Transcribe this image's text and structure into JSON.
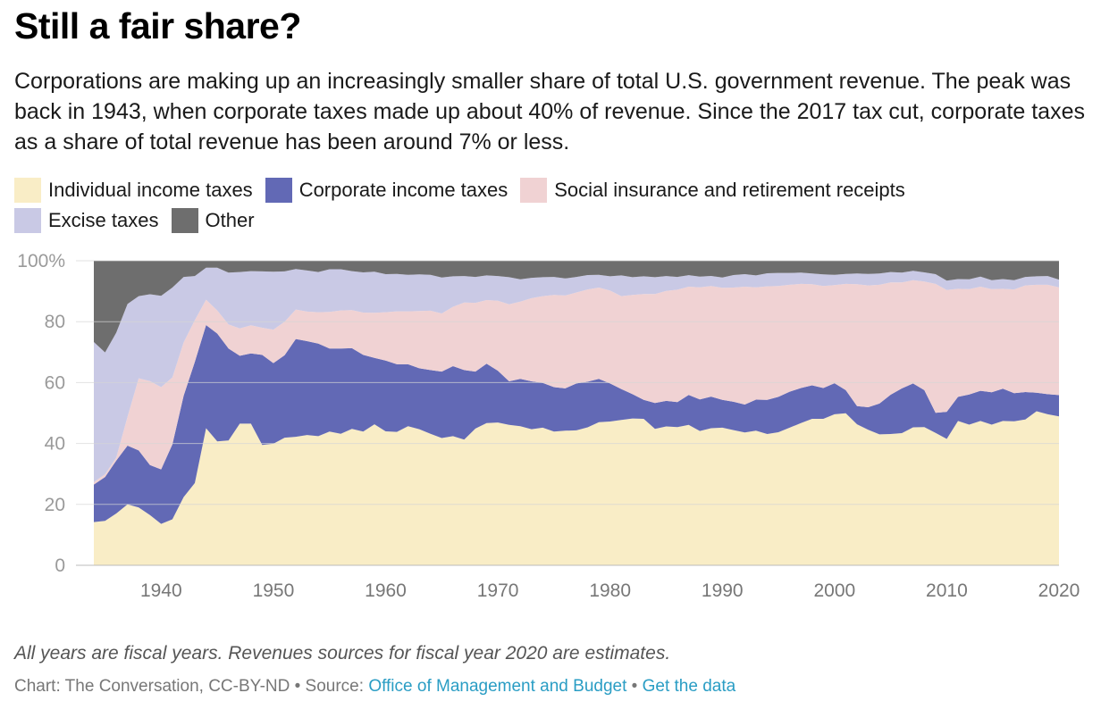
{
  "header": {
    "title": "Still a fair share?",
    "subtitle": "Corporations are making up an increasingly smaller share of total U.S. government revenue. The peak was back in 1943, when corporate taxes made up about 40% of revenue. Since the 2017 tax cut, corporate taxes as a share of total revenue has been around 7% or less."
  },
  "legend": [
    {
      "label": "Individual income taxes",
      "color": "#f9edc6"
    },
    {
      "label": "Corporate income taxes",
      "color": "#6269b5"
    },
    {
      "label": "Social insurance and retirement receipts",
      "color": "#f0d2d3"
    },
    {
      "label": "Excise taxes",
      "color": "#c9c9e5"
    },
    {
      "label": "Other",
      "color": "#6e6e6e"
    }
  ],
  "footer": {
    "note": "All years are fiscal years. Revenues sources for fiscal year 2020 are estimates.",
    "credit_prefix": "Chart: The Conversation, CC-BY-ND • Source: ",
    "source_link": "Office of Management and Budget",
    "separator": " • ",
    "data_link": "Get the data"
  },
  "chart_data": {
    "type": "area",
    "stacked": true,
    "ylim": [
      0,
      100
    ],
    "xlim": [
      1934,
      2020
    ],
    "y_ticks": [
      "0",
      "20",
      "40",
      "60",
      "80",
      "100%"
    ],
    "x_ticks": [
      "1940",
      "1950",
      "1960",
      "1970",
      "1980",
      "1990",
      "2000",
      "2010",
      "2020"
    ],
    "grid": true,
    "legend_position": "top",
    "x": [
      1934,
      1935,
      1936,
      1937,
      1938,
      1939,
      1940,
      1941,
      1942,
      1943,
      1944,
      1945,
      1946,
      1947,
      1948,
      1949,
      1950,
      1951,
      1952,
      1953,
      1954,
      1955,
      1956,
      1957,
      1958,
      1959,
      1960,
      1961,
      1962,
      1963,
      1964,
      1965,
      1966,
      1967,
      1968,
      1969,
      1970,
      1971,
      1972,
      1973,
      1974,
      1975,
      1976,
      1977,
      1978,
      1979,
      1980,
      1981,
      1982,
      1983,
      1984,
      1985,
      1986,
      1987,
      1988,
      1989,
      1990,
      1991,
      1992,
      1993,
      1994,
      1995,
      1996,
      1997,
      1998,
      1999,
      2000,
      2001,
      2002,
      2003,
      2004,
      2005,
      2006,
      2007,
      2008,
      2009,
      2010,
      2011,
      2012,
      2013,
      2014,
      2015,
      2016,
      2017,
      2018,
      2019,
      2020
    ],
    "series": [
      {
        "name": "Individual income taxes",
        "color": "#f9edc6",
        "values": [
          14.2,
          14.6,
          17.0,
          20.0,
          19.0,
          16.5,
          13.6,
          15.1,
          22.4,
          27.0,
          45.0,
          40.7,
          41.0,
          46.5,
          46.5,
          39.5,
          39.9,
          41.9,
          42.2,
          42.8,
          42.4,
          43.9,
          43.2,
          44.8,
          43.9,
          46.3,
          44.0,
          43.8,
          45.7,
          44.7,
          43.2,
          41.8,
          42.4,
          41.3,
          44.9,
          46.7,
          46.9,
          46.1,
          45.7,
          44.7,
          45.2,
          43.9,
          44.2,
          44.3,
          45.3,
          47.0,
          47.2,
          47.7,
          48.2,
          48.1,
          44.8,
          45.6,
          45.4,
          46.0,
          44.1,
          45.0,
          45.2,
          44.4,
          43.6,
          44.2,
          43.1,
          43.7,
          45.2,
          46.7,
          48.1,
          48.1,
          49.6,
          49.9,
          46.3,
          44.5,
          43.0,
          43.1,
          43.4,
          45.3,
          45.4,
          43.5,
          41.5,
          47.4,
          46.2,
          47.4,
          46.2,
          47.4,
          47.3,
          47.9,
          50.6,
          49.6,
          48.9
        ]
      },
      {
        "name": "Corporate income taxes",
        "color": "#6269b5",
        "values": [
          12.3,
          14.4,
          17.4,
          19.3,
          18.7,
          16.4,
          17.9,
          24.6,
          33.3,
          39.8,
          33.9,
          35.4,
          30.2,
          22.3,
          23.1,
          29.6,
          26.5,
          27.1,
          32.1,
          30.8,
          30.4,
          27.3,
          28.0,
          26.5,
          25.2,
          21.8,
          23.2,
          22.2,
          20.3,
          20.0,
          20.9,
          21.8,
          23.0,
          22.8,
          18.7,
          19.5,
          17.0,
          14.3,
          15.5,
          15.7,
          14.7,
          14.6,
          13.9,
          15.4,
          15.0,
          14.2,
          12.5,
          10.2,
          8.0,
          6.2,
          8.5,
          8.4,
          8.2,
          9.8,
          10.4,
          10.4,
          9.1,
          9.3,
          9.2,
          10.2,
          11.2,
          11.6,
          11.8,
          11.5,
          11.0,
          10.1,
          10.2,
          7.6,
          6.0,
          7.4,
          10.1,
          12.9,
          14.7,
          14.4,
          12.1,
          6.6,
          8.9,
          7.9,
          9.9,
          9.9,
          10.6,
          10.6,
          9.2,
          9.0,
          6.1,
          6.6,
          7.0
        ]
      },
      {
        "name": "Social insurance and retirement receipts",
        "color": "#f0d2d3",
        "values": [
          0.8,
          0.9,
          1.0,
          9.5,
          23.7,
          27.6,
          27.0,
          22.0,
          17.5,
          13.7,
          8.3,
          7.6,
          7.9,
          9.0,
          9.2,
          8.9,
          11.0,
          11.0,
          9.7,
          9.7,
          10.3,
          12.0,
          12.5,
          12.5,
          13.9,
          14.8,
          15.9,
          17.4,
          17.4,
          18.8,
          19.5,
          19.1,
          19.5,
          22.2,
          22.6,
          20.9,
          23.0,
          25.3,
          25.4,
          27.3,
          28.5,
          30.3,
          30.5,
          29.9,
          30.3,
          30.0,
          30.5,
          30.5,
          32.6,
          34.8,
          35.8,
          36.1,
          36.9,
          35.5,
          36.8,
          36.3,
          36.8,
          37.5,
          38.7,
          36.9,
          37.3,
          36.4,
          35.1,
          34.2,
          33.2,
          33.5,
          32.2,
          34.9,
          40.0,
          40.0,
          39.0,
          36.9,
          34.8,
          33.9,
          35.7,
          42.3,
          40.0,
          35.5,
          34.6,
          34.2,
          33.9,
          32.8,
          34.1,
          35.0,
          35.4,
          35.9,
          35.4
        ]
      },
      {
        "name": "Excise taxes",
        "color": "#c9c9e5",
        "values": [
          46.0,
          40.0,
          41.0,
          37.0,
          27.0,
          28.5,
          30.0,
          29.5,
          21.5,
          14.5,
          10.5,
          14.0,
          17.0,
          18.5,
          17.8,
          18.5,
          19.0,
          16.5,
          13.3,
          13.5,
          13.2,
          14.0,
          13.5,
          12.8,
          13.2,
          13.5,
          12.5,
          12.3,
          12.0,
          12.0,
          11.8,
          11.8,
          10.0,
          8.7,
          8.5,
          8.1,
          8.1,
          8.9,
          7.3,
          6.7,
          6.2,
          5.9,
          5.6,
          5.1,
          4.7,
          4.2,
          4.7,
          6.8,
          5.8,
          5.8,
          5.5,
          4.9,
          4.2,
          3.8,
          3.5,
          3.3,
          3.4,
          4.1,
          4.1,
          3.9,
          4.3,
          4.3,
          3.9,
          3.7,
          3.5,
          3.8,
          3.4,
          3.3,
          3.5,
          3.8,
          3.7,
          3.4,
          3.2,
          3.1,
          3.0,
          3.2,
          3.1,
          3.2,
          3.2,
          3.3,
          2.9,
          3.2,
          3.0,
          2.8,
          2.8,
          2.9,
          2.5
        ]
      },
      {
        "name": "Other",
        "color": "#6e6e6e",
        "values": [
          26.7,
          30.1,
          23.6,
          14.2,
          11.6,
          11.0,
          11.5,
          8.8,
          5.3,
          5.0,
          2.3,
          2.3,
          3.9,
          3.7,
          3.4,
          3.5,
          3.6,
          3.5,
          2.7,
          3.2,
          3.7,
          2.8,
          2.8,
          3.4,
          3.8,
          3.6,
          4.4,
          4.3,
          4.6,
          4.5,
          4.6,
          5.5,
          5.1,
          5.0,
          5.3,
          4.8,
          5.0,
          5.4,
          6.1,
          5.6,
          5.4,
          5.3,
          5.8,
          5.3,
          4.7,
          4.6,
          5.1,
          4.8,
          5.4,
          5.1,
          5.4,
          5.0,
          5.3,
          4.7,
          5.2,
          5.0,
          5.5,
          4.7,
          4.4,
          4.8,
          4.1,
          4.0,
          4.0,
          3.9,
          4.2,
          4.5,
          4.6,
          4.3,
          4.2,
          4.3,
          4.2,
          3.7,
          3.9,
          3.3,
          3.8,
          4.4,
          6.5,
          6.0,
          6.1,
          5.2,
          6.4,
          6.0,
          6.4,
          5.3,
          5.1,
          5.0,
          6.2
        ]
      }
    ]
  }
}
